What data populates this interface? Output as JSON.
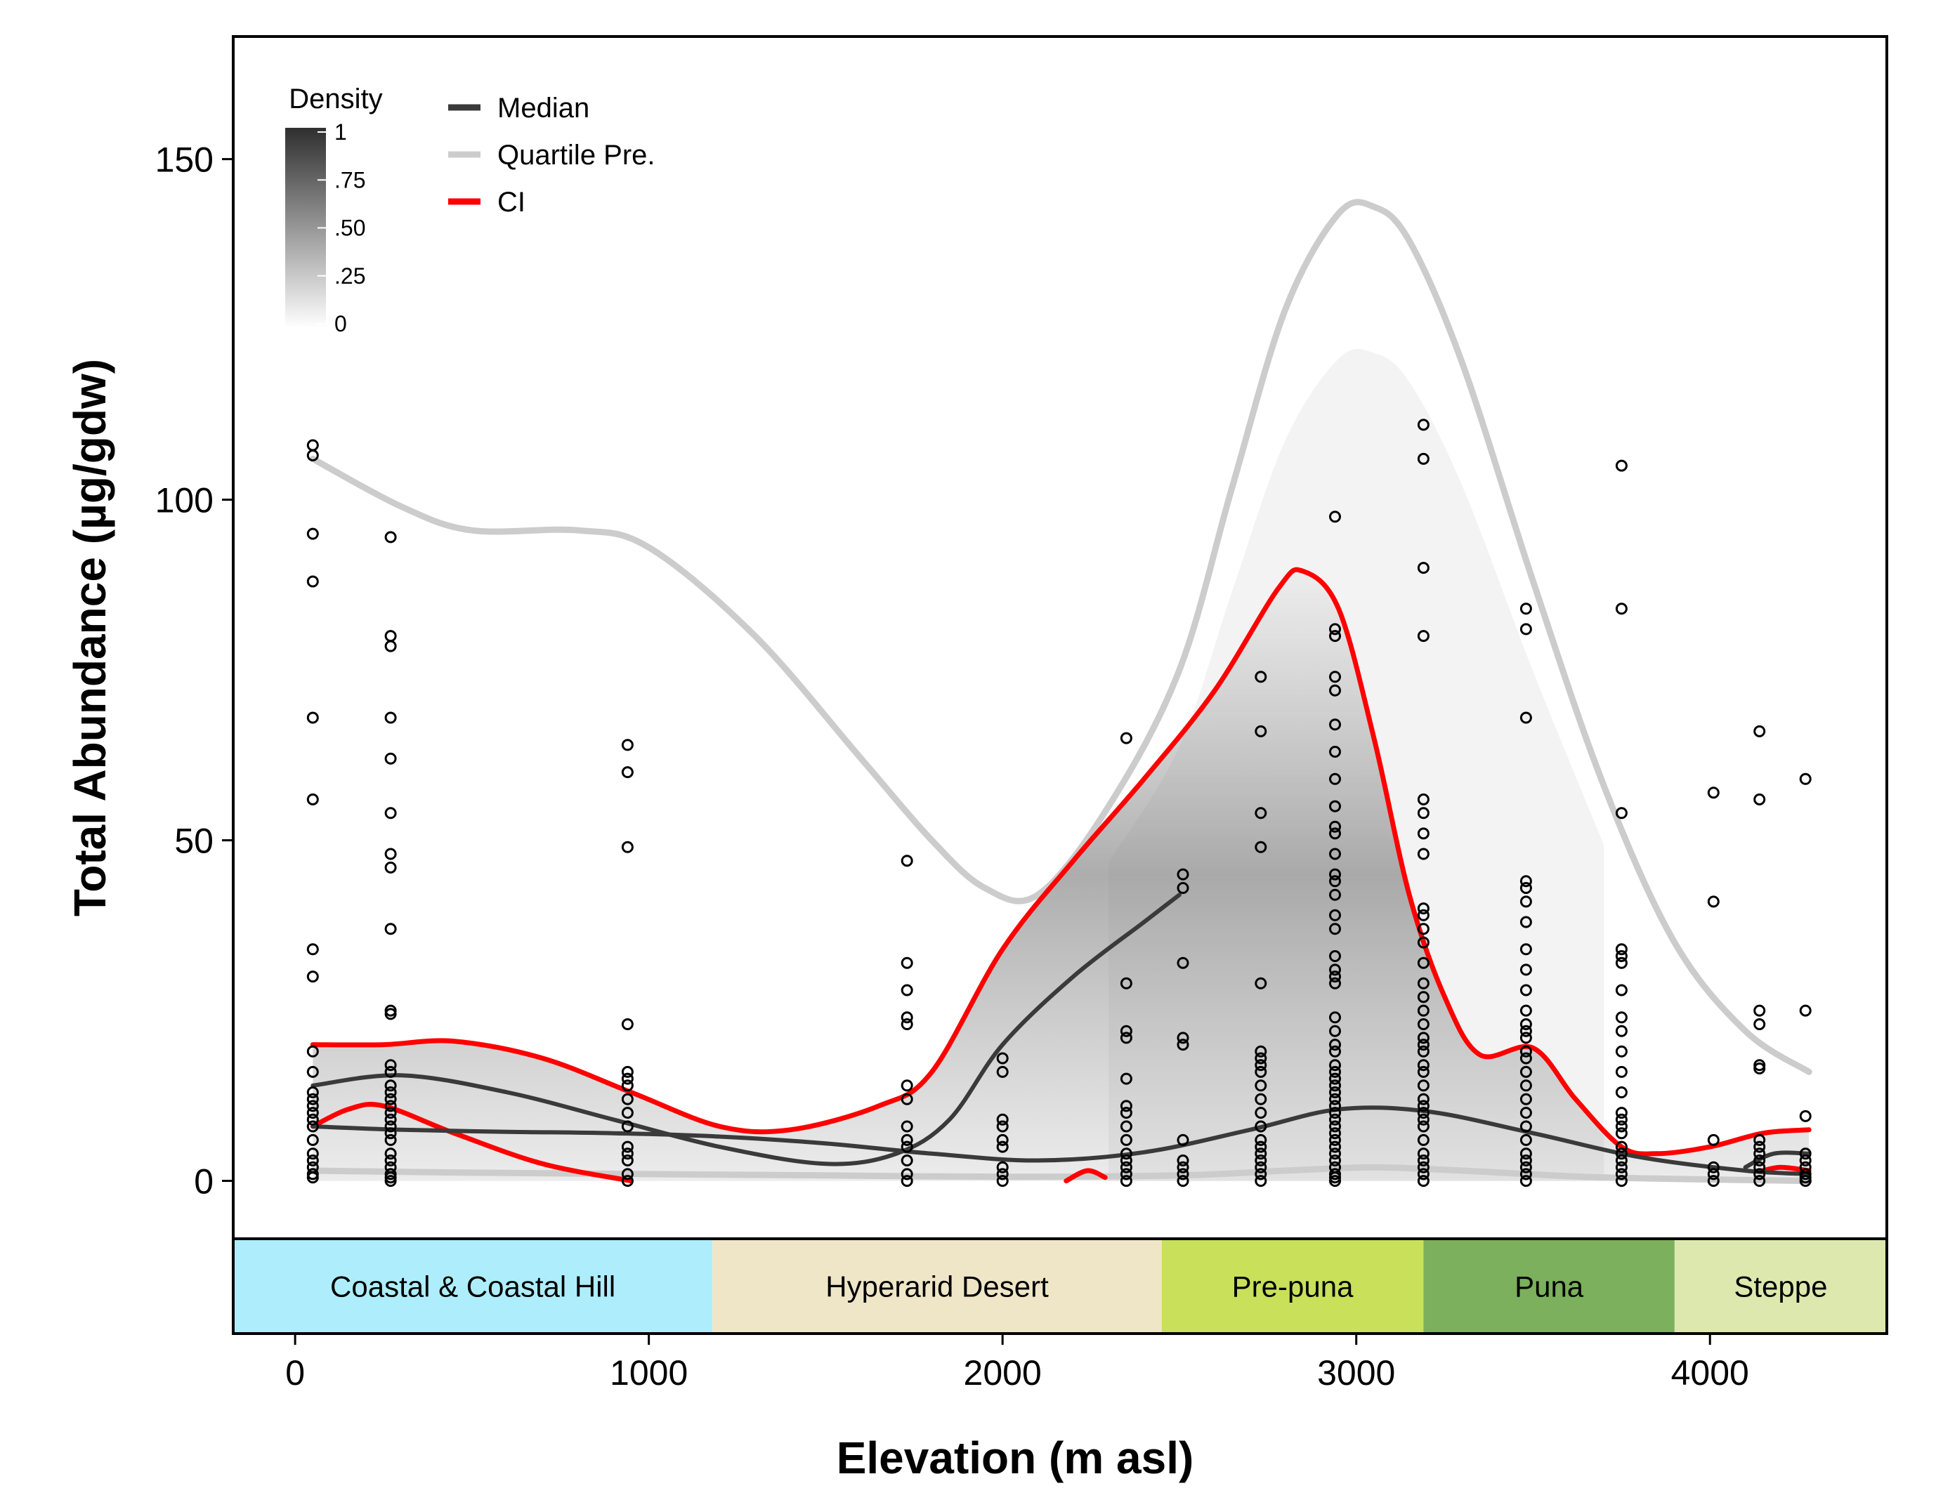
{
  "chart_data": {
    "type": "line",
    "xlabel": "Elevation (m asl)",
    "ylabel": "Total Abundance (µg/gdw)",
    "xlim": [
      -175,
      4500
    ],
    "ylim": [
      -8.5,
      168
    ],
    "xticks": [
      0,
      1000,
      2000,
      3000,
      4000
    ],
    "yticks": [
      0,
      50,
      100,
      150
    ],
    "grid": false,
    "legend": {
      "placement": "top-left",
      "density_title": "Density",
      "density_ticks": [
        "1",
        ".75",
        ".50",
        ".25",
        "0"
      ],
      "items": [
        {
          "label": "Median",
          "color": "#3a3a3a"
        },
        {
          "label": "Quartile Pre.",
          "color": "#cccccc"
        },
        {
          "label": "CI",
          "color": "#ff0000"
        }
      ]
    },
    "zones": [
      {
        "label": "Coastal & Coastal Hill",
        "x0": -175,
        "x1": 1180,
        "color": "#aeeefc"
      },
      {
        "label": "Hyperarid Desert",
        "x0": 1180,
        "x1": 2450,
        "color": "#efe6c8"
      },
      {
        "label": "Pre-puna",
        "x0": 2450,
        "x1": 3190,
        "color": "#c8e05a"
      },
      {
        "label": "Puna",
        "x0": 3190,
        "x1": 3900,
        "color": "#7cb05c"
      },
      {
        "label": "Steppe",
        "x0": 3900,
        "x1": 4500,
        "color": "#dde8ae"
      }
    ],
    "series": [
      {
        "name": "Median",
        "color": "#3a3a3a",
        "width": 6,
        "x": [
          50,
          300,
          600,
          900,
          1200,
          1500,
          1800,
          2100,
          2400,
          2700,
          2950,
          3200,
          3500,
          3800,
          4100,
          4280
        ],
        "y": [
          8,
          7.5,
          7.2,
          7.0,
          6.5,
          5.5,
          4.0,
          3.0,
          4.2,
          7.5,
          10.5,
          10.2,
          7.0,
          3.5,
          1.5,
          1.0
        ]
      },
      {
        "name": "",
        "color": "#3a3a3a",
        "width": 6,
        "x": [
          50,
          300,
          600,
          900,
          1200,
          1500,
          1700,
          1850,
          2000,
          2200,
          2400,
          2500
        ],
        "y": [
          14,
          15.5,
          13,
          9,
          5,
          2.5,
          4,
          9,
          20,
          30,
          38,
          42
        ]
      },
      {
        "name": "",
        "color": "#3a3a3a",
        "width": 6,
        "x": [
          4100,
          4180,
          4280
        ],
        "y": [
          2,
          4,
          4
        ]
      },
      {
        "name": "Quartile Pre.",
        "color": "#cccccc",
        "width": 9,
        "x": [
          50,
          300,
          500,
          800,
          1000,
          1300,
          1600,
          1800,
          1950,
          2100,
          2300,
          2500,
          2650,
          2800,
          2950,
          3050,
          3150,
          3300,
          3500,
          3700,
          3900,
          4100,
          4280
        ],
        "y": [
          106,
          99,
          95.5,
          95.5,
          93,
          80,
          62,
          50,
          43,
          42,
          55,
          75,
          102,
          128,
          142,
          143,
          138,
          120,
          88,
          58,
          35,
          22,
          16
        ]
      },
      {
        "name": "",
        "color": "#cccccc",
        "width": 9,
        "x": [
          50,
          500,
          1000,
          1500,
          2000,
          2500,
          2800,
          3050,
          3300,
          3700,
          4280
        ],
        "y": [
          1.5,
          1.2,
          1.0,
          0.8,
          0.6,
          0.8,
          1.5,
          2.0,
          1.5,
          0.5,
          0
        ]
      },
      {
        "name": "CI",
        "color": "#ff0000",
        "width": 7,
        "x": [
          50,
          250,
          450,
          700,
          950,
          1200,
          1400,
          1650,
          1800,
          2000,
          2200,
          2400,
          2600,
          2780,
          2850,
          2950,
          3050,
          3150,
          3250,
          3350,
          3500,
          3620,
          3750,
          3850,
          4000,
          4150,
          4280
        ],
        "y": [
          20,
          20,
          20.5,
          18,
          13,
          8,
          7.5,
          11,
          16,
          34,
          47,
          59,
          72,
          87,
          89.5,
          84,
          65,
          42,
          27,
          18.5,
          19.5,
          12,
          5,
          4,
          5,
          7,
          7.5
        ]
      },
      {
        "name": "",
        "color": "#ff0000",
        "width": 7,
        "x": [
          50,
          150,
          250,
          450,
          700,
          950
        ],
        "y": [
          8,
          10.5,
          11,
          7,
          2.5,
          0
        ]
      },
      {
        "name": "",
        "color": "#ff0000",
        "width": 7,
        "x": [
          2180,
          2240,
          2290
        ],
        "y": [
          0,
          1.5,
          0.5
        ]
      },
      {
        "name": "",
        "color": "#ff0000",
        "width": 7,
        "x": [
          4150,
          4200,
          4280
        ],
        "y": [
          1.5,
          2,
          1.5
        ]
      }
    ],
    "points": [
      {
        "x": 50,
        "y": [
          108,
          106.5,
          95,
          88,
          68,
          56,
          34,
          30,
          19,
          16,
          13,
          12,
          11,
          10,
          9,
          8,
          6,
          4,
          3,
          2,
          1,
          0.5
        ]
      },
      {
        "x": 270,
        "y": [
          94.5,
          80,
          78.5,
          68,
          62,
          54,
          48,
          46,
          37,
          25,
          24.5,
          17,
          16,
          14,
          13,
          12,
          11,
          10,
          9,
          8,
          7,
          6,
          4,
          3,
          2,
          1,
          0.5,
          0
        ]
      },
      {
        "x": 940,
        "y": [
          64,
          60,
          49,
          23,
          16,
          15,
          14,
          12,
          10,
          8,
          5,
          4,
          3,
          1,
          0
        ]
      },
      {
        "x": 1730,
        "y": [
          47,
          32,
          28,
          24,
          23,
          14,
          12,
          8,
          6,
          5,
          3,
          1,
          0
        ]
      },
      {
        "x": 2000,
        "y": [
          18,
          16,
          9,
          8,
          6,
          5,
          2,
          1,
          0
        ]
      },
      {
        "x": 2350,
        "y": [
          65,
          29,
          22,
          21,
          15,
          11,
          10,
          8,
          6,
          4,
          3,
          2,
          1,
          0
        ]
      },
      {
        "x": 2510,
        "y": [
          45,
          43,
          32,
          21,
          20,
          6,
          3,
          2,
          1,
          0
        ]
      },
      {
        "x": 2730,
        "y": [
          74,
          66,
          54,
          49,
          29,
          19,
          18,
          17,
          16,
          14,
          12,
          10,
          8,
          6,
          5,
          4,
          3,
          2,
          1,
          0
        ]
      },
      {
        "x": 2940,
        "y": [
          97.5,
          81,
          80,
          74,
          72,
          67,
          63,
          59,
          55,
          52,
          51,
          48,
          45,
          44,
          42,
          39,
          37,
          33,
          31,
          30,
          29,
          24,
          22,
          20,
          19,
          17,
          16,
          15,
          14,
          13,
          12,
          11,
          10,
          9,
          8,
          7,
          6,
          5,
          4,
          3,
          2,
          1,
          0.5,
          0
        ]
      },
      {
        "x": 3190,
        "y": [
          111,
          106,
          90,
          80,
          56,
          54,
          51,
          48,
          40,
          39,
          37,
          35,
          32,
          29,
          27,
          25,
          23,
          21,
          20,
          19,
          17,
          16,
          14,
          12,
          11,
          10,
          9,
          8,
          6,
          4,
          3,
          2,
          1,
          0
        ]
      },
      {
        "x": 3480,
        "y": [
          84,
          81,
          68,
          44,
          43,
          41,
          38,
          34,
          31,
          28,
          25,
          23,
          22,
          21,
          19,
          18,
          16,
          14,
          12,
          10,
          8,
          6,
          4,
          3,
          2,
          1,
          0
        ]
      },
      {
        "x": 3750,
        "y": [
          105,
          84,
          54,
          34,
          33,
          32,
          28,
          24,
          22,
          19,
          16,
          13,
          10,
          9,
          8,
          7,
          5,
          4,
          3,
          2,
          1,
          0
        ]
      },
      {
        "x": 4010,
        "y": [
          57,
          41,
          6,
          2,
          1,
          0
        ]
      },
      {
        "x": 4140,
        "y": [
          66,
          56,
          25,
          23,
          17,
          16.5,
          6,
          5,
          4,
          3,
          2,
          1,
          0
        ]
      },
      {
        "x": 4270,
        "y": [
          59,
          25,
          9.5,
          4,
          3,
          2,
          1,
          0.5,
          0
        ]
      }
    ]
  }
}
